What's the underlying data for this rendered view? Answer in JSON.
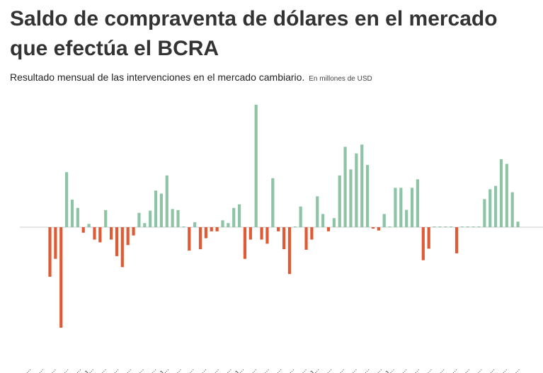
{
  "title": "Saldo de compraventa de dólares en el mercado que efectúa el BCRA",
  "subtitle": "Resultado mensual de las intervenciones en el mercado cambiario.",
  "unit": "En millones de USD",
  "colors": {
    "positive": "#8ec4a6",
    "negative": "#e05a35",
    "zero_line": "#cccccc",
    "tick_label": "#555555"
  },
  "chart_data": {
    "type": "bar",
    "ylabel": "",
    "grid": false,
    "legend": "none",
    "values": [
      -1800,
      -1150,
      -3650,
      2000,
      1000,
      700,
      -200,
      120,
      -450,
      -550,
      620,
      -450,
      -1050,
      -1450,
      -650,
      -300,
      520,
      150,
      600,
      1330,
      1220,
      1880,
      660,
      620,
      20,
      -850,
      180,
      -800,
      -400,
      -150,
      -150,
      250,
      150,
      700,
      830,
      -1150,
      -450,
      4450,
      -450,
      -600,
      1780,
      -150,
      -800,
      -1700,
      20,
      750,
      -820,
      -450,
      1120,
      480,
      -150,
      330,
      1880,
      2920,
      2100,
      2680,
      3000,
      2260,
      -50,
      -120,
      480,
      20,
      1430,
      1430,
      630,
      1430,
      1740,
      -1200,
      -780,
      20,
      20,
      20,
      20,
      -950,
      20,
      20,
      20,
      20,
      1020,
      1380,
      1500,
      2470,
      2300,
      1270,
      200
    ],
    "x_tick_labels": [
      "...",
      "...",
      "...",
      "...",
      "...",
      "J...",
      "...",
      "...",
      "...",
      "...",
      "...",
      "J...",
      "...",
      "...",
      "...",
      "...",
      "...",
      "J...",
      "...",
      "...",
      "...",
      "...",
      "...",
      "J...",
      "...",
      "...",
      "...",
      "...",
      "...",
      "J...",
      "...",
      "...",
      "...",
      "...",
      "...",
      "...",
      "...",
      "...",
      "...",
      "..."
    ]
  }
}
